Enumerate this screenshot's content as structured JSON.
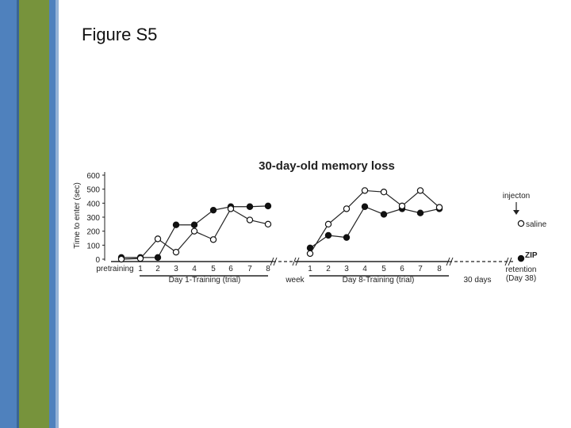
{
  "slide": {
    "title": "Figure S5"
  },
  "chart_data": {
    "type": "line",
    "title": "30-day-old memory loss",
    "ylabel": "Time to enter (sec)",
    "ylim": [
      0,
      600
    ],
    "yticks": [
      "0",
      "100",
      "200",
      "300",
      "400",
      "500",
      "600"
    ],
    "groups": [
      {
        "label": "Day 1-Training (trial)",
        "x": [
          "pretraining",
          "1",
          "2",
          "3",
          "4",
          "5",
          "6",
          "7",
          "8"
        ]
      },
      {
        "label": "Day 8-Training (trial)",
        "x": [
          "1",
          "2",
          "3",
          "4",
          "5",
          "6",
          "7",
          "8"
        ]
      }
    ],
    "break_labels": [
      "week",
      "30 days"
    ],
    "retention_label": [
      "retention",
      "(Day 38)"
    ],
    "injection_label": "injecton",
    "series": [
      {
        "name": "ZIP",
        "marker": "filled",
        "day1": [
          12,
          12,
          12,
          245,
          245,
          350,
          375,
          375,
          380
        ],
        "day1_err": [
          0,
          0,
          0,
          0,
          0,
          0,
          0,
          0,
          0
        ],
        "day8": [
          80,
          170,
          155,
          375,
          320,
          360,
          330,
          360
        ],
        "day8_err": [
          0,
          0,
          0,
          0,
          0,
          0,
          0,
          0
        ],
        "retention": 5
      },
      {
        "name": "saline",
        "marker": "open",
        "day1": [
          0,
          5,
          145,
          50,
          200,
          140,
          360,
          280,
          250
        ],
        "day1_err": [
          0,
          0,
          0,
          0,
          0,
          0,
          0,
          0,
          0
        ],
        "day8": [
          40,
          250,
          360,
          490,
          480,
          380,
          490,
          370
        ],
        "day8_err": [
          0,
          0,
          0,
          0,
          0,
          0,
          0,
          0
        ],
        "retention": 255
      }
    ]
  }
}
